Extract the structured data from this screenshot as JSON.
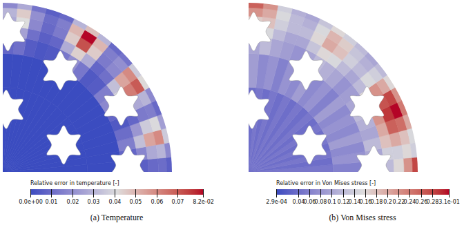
{
  "chart_data": [
    {
      "type": "heatmap",
      "title": "(a) Temperature",
      "cells": {
        "r_edges": [
          0,
          0.5,
          0.7,
          0.8,
          0.86,
          0.92,
          0.97,
          1
        ],
        "theta_edges": [
          0,
          5,
          10,
          15,
          20,
          25,
          30,
          35,
          40,
          45,
          50,
          55,
          60,
          65,
          70,
          75,
          80,
          85,
          90
        ],
        "values": [
          [
            0,
            0,
            0,
            0,
            0,
            0,
            0,
            0,
            0,
            0,
            0,
            0,
            0,
            0,
            0,
            0,
            0,
            0
          ],
          [
            0,
            0,
            0,
            0,
            0,
            0,
            0,
            0,
            0,
            0,
            0,
            0,
            0,
            0,
            0,
            0,
            0,
            0
          ],
          [
            0.003,
            0.008,
            0.015,
            0.01,
            0.004,
            0.008,
            0.018,
            0.015,
            0.005,
            0.004,
            0.013,
            0.02,
            0.013,
            0.004,
            0.003,
            0.005,
            0.011,
            0.008
          ],
          [
            0.006,
            0.017,
            0.033,
            0.022,
            0.008,
            0.017,
            0.039,
            0.033,
            0.011,
            0.008,
            0.028,
            0.044,
            0.028,
            0.008,
            0.006,
            0.011,
            0.025,
            0.017
          ],
          [
            0.009,
            0.027,
            0.054,
            0.036,
            0.014,
            0.027,
            0.063,
            0.054,
            0.018,
            0.014,
            0.045,
            0.072,
            0.045,
            0.014,
            0.009,
            0.018,
            0.041,
            0.027
          ],
          [
            0.01,
            0.03,
            0.06,
            0.04,
            0.015,
            0.03,
            0.07,
            0.06,
            0.02,
            0.015,
            0.05,
            0.082,
            0.05,
            0.015,
            0.01,
            0.02,
            0.045,
            0.03
          ],
          [
            0.006,
            0.018,
            0.036,
            0.024,
            0.009,
            0.018,
            0.042,
            0.036,
            0.012,
            0.009,
            0.03,
            0.048,
            0.03,
            0.009,
            0.006,
            0.012,
            0.027,
            0.018
          ]
        ]
      },
      "colorbar": {
        "label": "Relative error in temperature [-]",
        "range": [
          0,
          0.082
        ],
        "ticks": [
          {
            "value": 0,
            "label": "0.0e+00"
          },
          0.01,
          0.02,
          0.03,
          0.04,
          0.05,
          0.06,
          0.07,
          {
            "value": 0.082,
            "label": "8.2e-02"
          }
        ]
      }
    },
    {
      "type": "heatmap",
      "title": "(b) Von Mises stress",
      "cells": {
        "r_edges": [
          0,
          0.5,
          0.7,
          0.8,
          0.86,
          0.92,
          0.97,
          1
        ],
        "theta_edges": [
          0,
          5,
          10,
          15,
          20,
          25,
          30,
          35,
          40,
          45,
          50,
          55,
          60,
          65,
          70,
          75,
          80,
          85,
          90
        ],
        "values": [
          [
            0.05,
            0.04,
            0.05,
            0.04,
            0.05,
            0.04,
            0.05,
            0.04,
            0.05,
            0.04,
            0.05,
            0.04,
            0.05,
            0.04,
            0.05,
            0.04,
            0.05,
            0.04
          ],
          [
            0.06,
            0.08,
            0.07,
            0.09,
            0.07,
            0.08,
            0.07,
            0.09,
            0.06,
            0.08,
            0.07,
            0.09,
            0.07,
            0.08,
            0.06,
            0.08,
            0.07,
            0.09
          ],
          [
            0.08,
            0.1,
            0.12,
            0.1,
            0.11,
            0.12,
            0.1,
            0.09,
            0.08,
            0.1,
            0.11,
            0.12,
            0.1,
            0.08,
            0.09,
            0.1,
            0.12,
            0.1
          ],
          [
            0.12,
            0.14,
            0.18,
            0.2,
            0.22,
            0.2,
            0.16,
            0.12,
            0.1,
            0.12,
            0.15,
            0.16,
            0.13,
            0.1,
            0.1,
            0.12,
            0.15,
            0.14
          ],
          [
            0.16,
            0.14,
            0.2,
            0.26,
            0.29,
            0.27,
            0.22,
            0.15,
            0.12,
            0.14,
            0.18,
            0.2,
            0.16,
            0.12,
            0.12,
            0.14,
            0.18,
            0.17
          ],
          [
            0.22,
            0.16,
            0.18,
            0.25,
            0.31,
            0.28,
            0.2,
            0.14,
            0.11,
            0.13,
            0.17,
            0.19,
            0.15,
            0.11,
            0.12,
            0.15,
            0.2,
            0.22
          ],
          [
            0.28,
            0.14,
            0.15,
            0.2,
            0.24,
            0.22,
            0.16,
            0.12,
            0.1,
            0.12,
            0.14,
            0.16,
            0.13,
            0.1,
            0.11,
            0.14,
            0.22,
            0.26
          ]
        ]
      },
      "colorbar": {
        "label": "Relative error in Von Mises stress [-]",
        "range": [
          0.00029,
          0.31
        ],
        "ticks": [
          {
            "value": 0.00029,
            "label": "2.9e-04"
          },
          0.04,
          0.06,
          0.08,
          0.1,
          0.12,
          0.14,
          0.16,
          0.18,
          0.2,
          0.22,
          0.24,
          0.26,
          0.28,
          {
            "value": 0.31,
            "label": "3.1e-01"
          }
        ]
      }
    }
  ]
}
